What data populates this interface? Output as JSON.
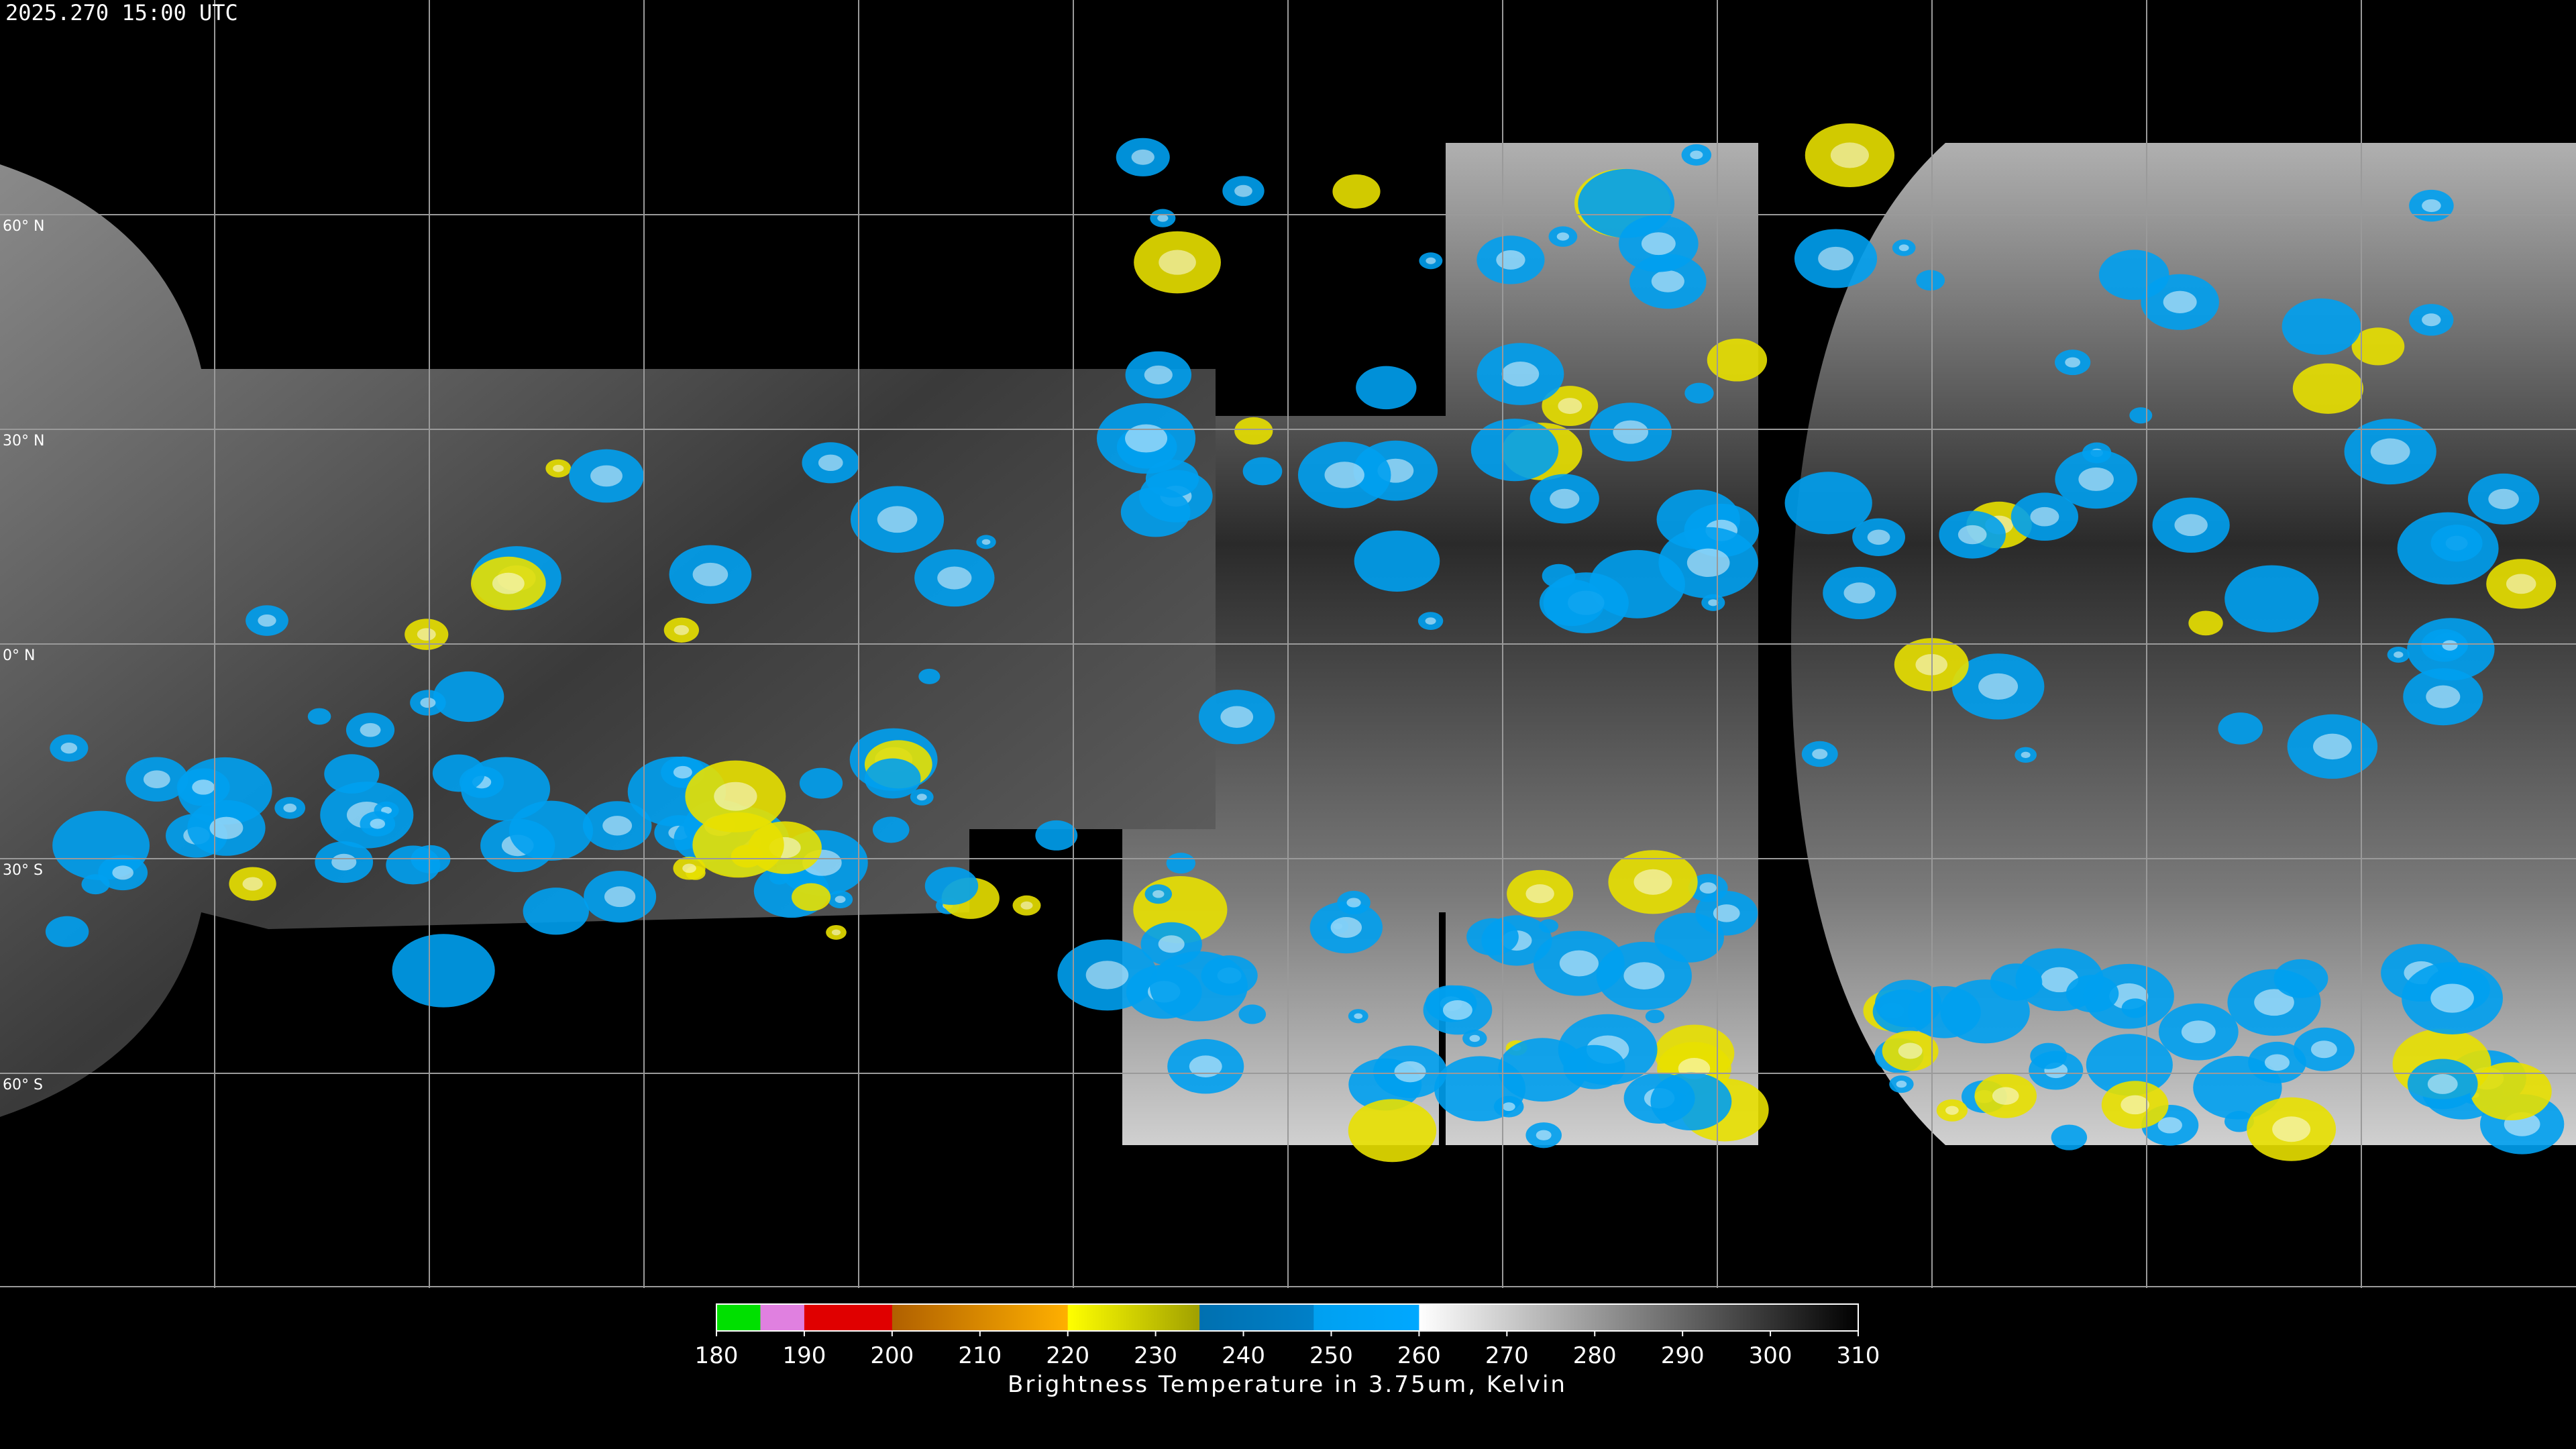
{
  "timestamp": "2025.270 15:00 UTC",
  "grid_labels": [
    "60° N",
    "30° N",
    "0° N",
    "30° S",
    "60° S"
  ],
  "colorbar": {
    "label": "Brightness Temperature in 3.75um, Kelvin",
    "range": [
      180,
      310
    ],
    "ticks": [
      180,
      190,
      200,
      210,
      220,
      230,
      240,
      250,
      260,
      270,
      280,
      290,
      300,
      310
    ],
    "segments": [
      {
        "from": 180,
        "to": 185,
        "colors": [
          "#00e000",
          "#00e000"
        ]
      },
      {
        "from": 185,
        "to": 190,
        "colors": [
          "#e080e0",
          "#e080e0"
        ]
      },
      {
        "from": 190,
        "to": 200,
        "colors": [
          "#e00000",
          "#e00000"
        ]
      },
      {
        "from": 200,
        "to": 220,
        "colors": [
          "#b06000",
          "#ffb000"
        ]
      },
      {
        "from": 220,
        "to": 235,
        "colors": [
          "#ffff00",
          "#a0a000"
        ]
      },
      {
        "from": 235,
        "to": 248,
        "colors": [
          "#0070b0",
          "#0080c8"
        ]
      },
      {
        "from": 248,
        "to": 260,
        "colors": [
          "#00a0f0",
          "#00a8ff"
        ]
      },
      {
        "from": 260,
        "to": 310,
        "colors": [
          "#ffffff",
          "#000000"
        ]
      }
    ]
  }
}
